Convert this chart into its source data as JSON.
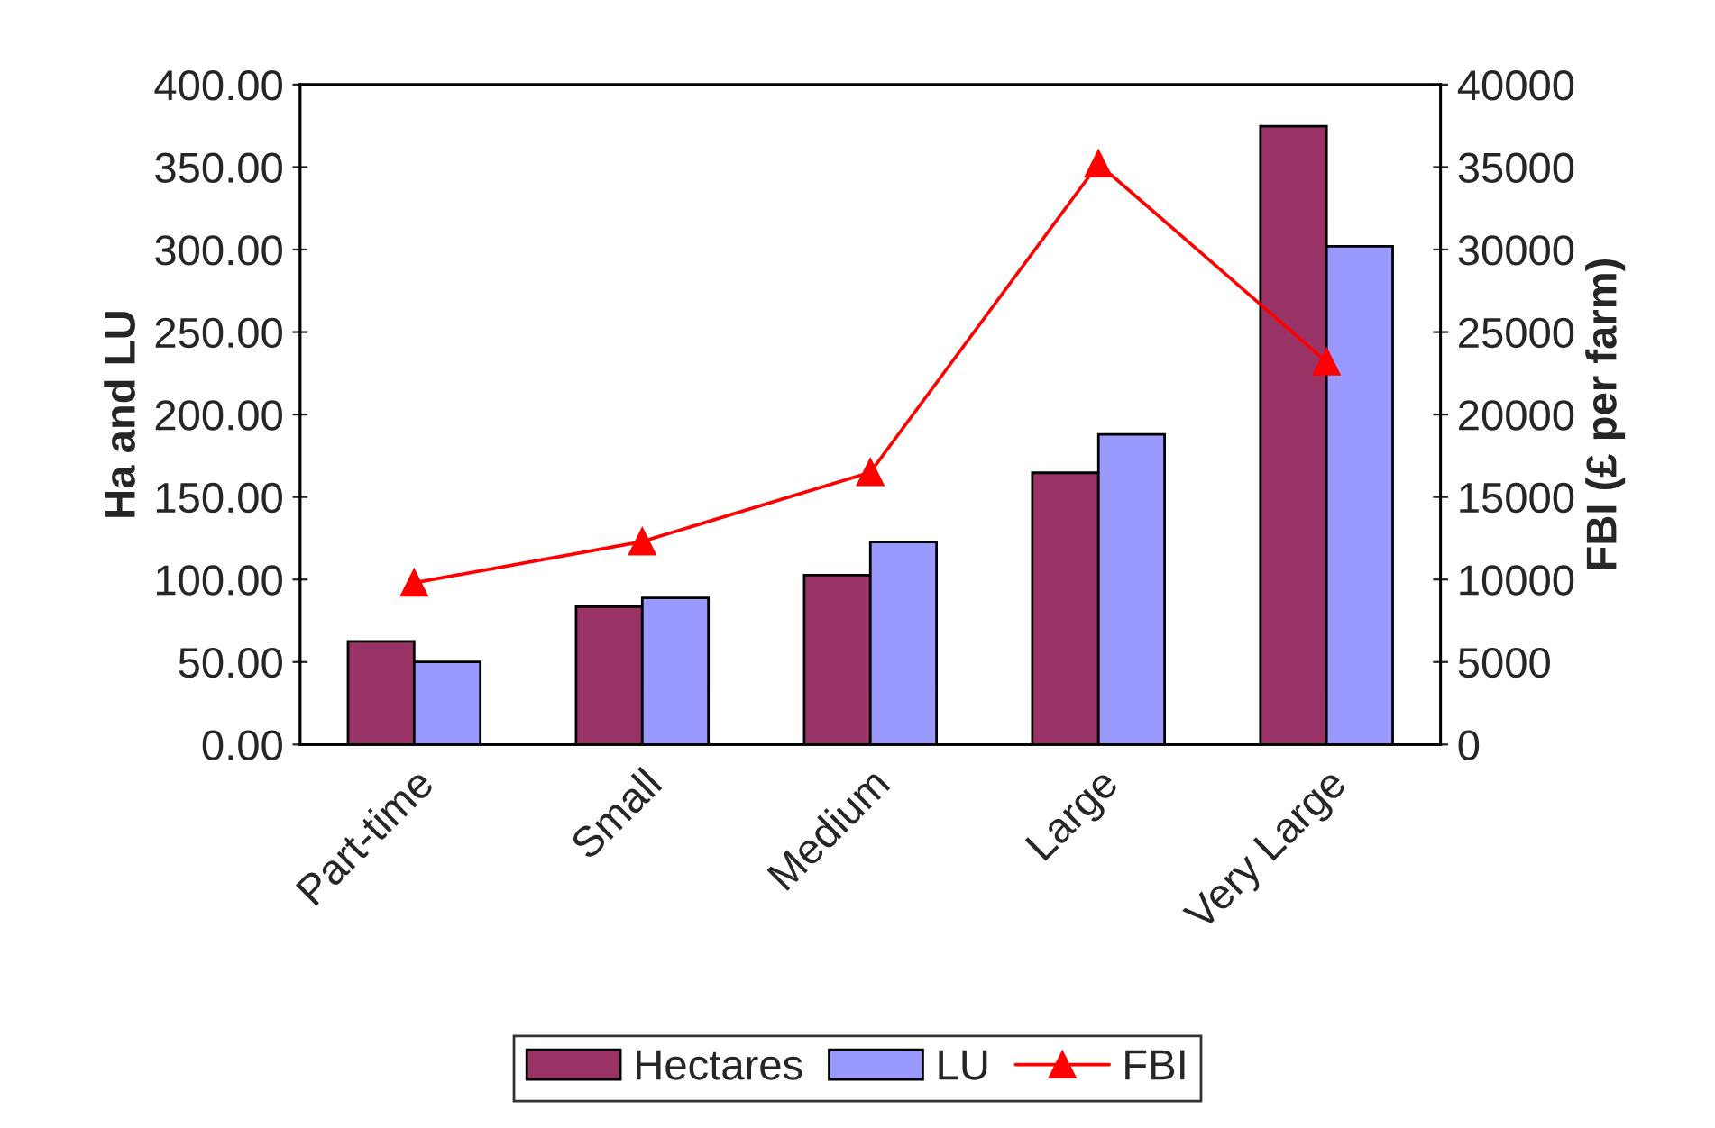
{
  "chart_data": {
    "type": "bar",
    "ylabel": "Ha and LU",
    "y2label": "FBI (£ per farm)",
    "categories": [
      "Part-time",
      "Small",
      "Medium",
      "Large",
      "Very Large"
    ],
    "series": [
      {
        "name": "Hectares",
        "color": "#993366",
        "values": [
          62.5,
          83.5,
          102.6,
          164.7,
          374.7
        ]
      },
      {
        "name": "LU",
        "color": "#9999ff",
        "values": [
          50.1,
          88.8,
          122.7,
          188.0,
          302.0
        ]
      },
      {
        "name": "FBI",
        "type": "line",
        "axis": "y2",
        "color": "#ff0000",
        "marker": "triangle",
        "values": [
          9800,
          12300,
          16500,
          35200,
          23200
        ]
      }
    ],
    "ylim": [
      0,
      400
    ],
    "yticks": [
      {
        "value": 0,
        "label": "0.00"
      },
      {
        "value": 50,
        "label": "50.00"
      },
      {
        "value": 100,
        "label": "100.00"
      },
      {
        "value": 150,
        "label": "150.00"
      },
      {
        "value": 200,
        "label": "200.00"
      },
      {
        "value": 250,
        "label": "250.00"
      },
      {
        "value": 300,
        "label": "300.00"
      },
      {
        "value": 350,
        "label": "350.00"
      },
      {
        "value": 400,
        "label": "400.00"
      }
    ],
    "y2lim": [
      0,
      40000
    ],
    "y2ticks": [
      0,
      5000,
      10000,
      15000,
      20000,
      25000,
      30000,
      35000,
      40000
    ],
    "grid": false,
    "legend": "bottom"
  }
}
